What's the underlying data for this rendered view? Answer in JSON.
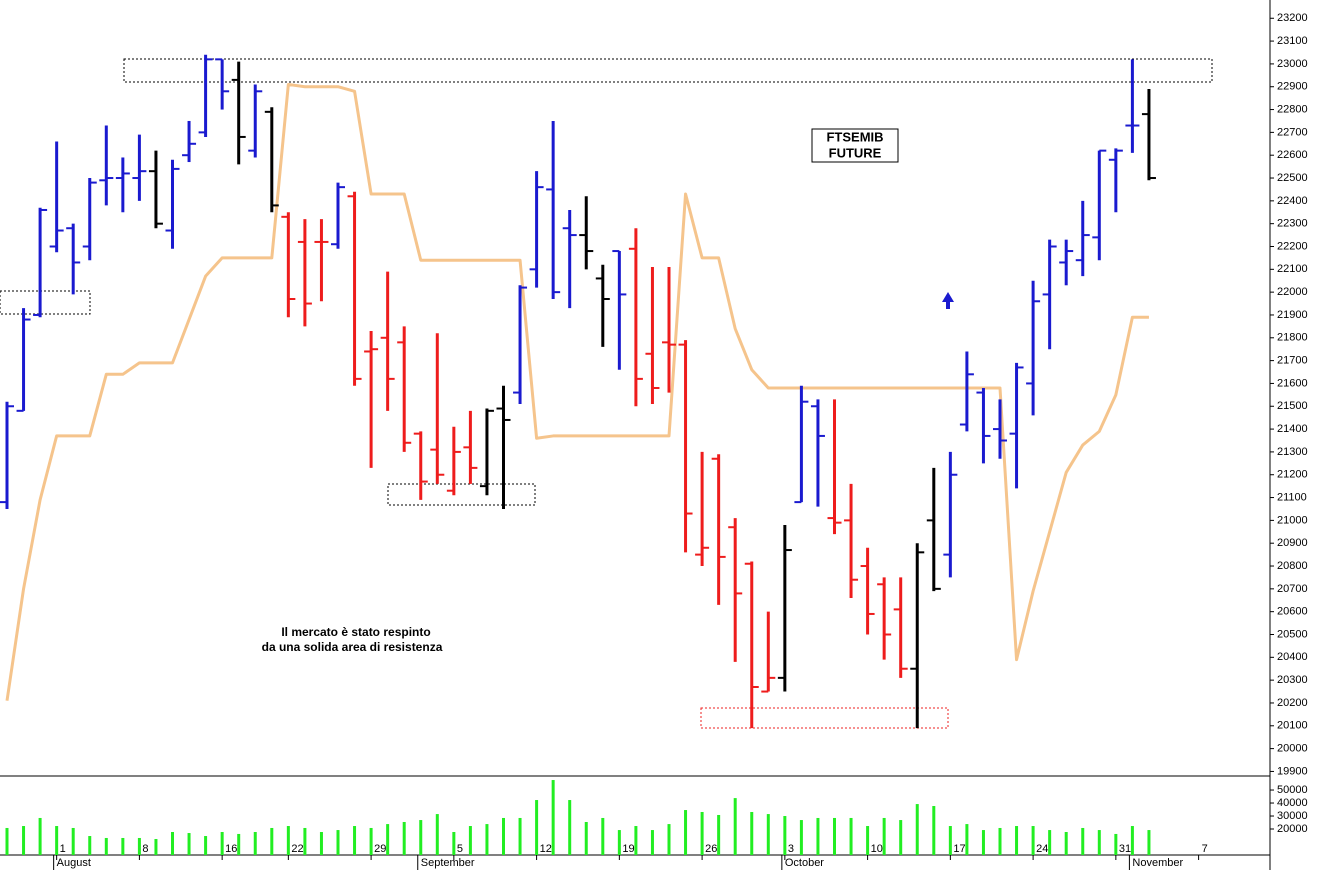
{
  "chart_data": {
    "type": "ohlc",
    "title_lines": [
      "FTSEMIB",
      "FUTURE"
    ],
    "annotation_lines": [
      "Il mercato è stato respinto",
      "da una solida area di resistenza"
    ],
    "categories": [
      null,
      null,
      null,
      "1",
      null,
      null,
      null,
      null,
      "8",
      null,
      null,
      null,
      null,
      "16",
      null,
      null,
      null,
      "22",
      null,
      null,
      null,
      null,
      "29",
      null,
      null,
      null,
      null,
      "5",
      null,
      null,
      null,
      null,
      "12",
      null,
      null,
      null,
      null,
      "19",
      null,
      null,
      null,
      null,
      "26",
      null,
      null,
      null,
      null,
      "3",
      null,
      null,
      null,
      null,
      "10",
      null,
      null,
      null,
      null,
      "17",
      null,
      null,
      null,
      null,
      "24",
      null,
      null,
      null,
      null,
      "31",
      null,
      null,
      null,
      null,
      "7"
    ],
    "month_labels": [
      null,
      null,
      null,
      "August",
      null,
      null,
      null,
      null,
      null,
      null,
      null,
      null,
      null,
      null,
      null,
      null,
      null,
      null,
      null,
      null,
      null,
      null,
      null,
      null,
      null,
      "September",
      null,
      null,
      null,
      null,
      null,
      null,
      null,
      null,
      null,
      null,
      null,
      null,
      null,
      null,
      null,
      null,
      null,
      null,
      null,
      null,
      null,
      "October",
      null,
      null,
      null,
      null,
      null,
      null,
      null,
      null,
      null,
      null,
      null,
      null,
      null,
      null,
      null,
      null,
      null,
      null,
      null,
      null,
      "November",
      null,
      null,
      null,
      null
    ],
    "ohlc": {
      "open": [
        21080,
        21480,
        21900,
        22200,
        22280,
        22200,
        22490,
        22500,
        22500,
        22530,
        22270,
        22600,
        22700,
        23020,
        22930,
        22620,
        22790,
        22330,
        22220,
        22220,
        22210,
        22420,
        21740,
        21800,
        21780,
        21380,
        21310,
        21130,
        21320,
        21150,
        21490,
        21560,
        22100,
        22450,
        22280,
        22250,
        22060,
        22180,
        22190,
        21730,
        21780,
        21770,
        20850,
        21270,
        20970,
        20810,
        20250,
        20310,
        21080,
        21500,
        21010,
        21000,
        20800,
        20720,
        20610,
        20350,
        21000,
        20850,
        21420,
        21560,
        21400,
        21380,
        21600,
        21990,
        22130,
        22140,
        22240,
        22580,
        22730,
        22780,
        null,
        null,
        null
      ],
      "high": [
        21520,
        21930,
        22370,
        22660,
        22300,
        22500,
        22730,
        22590,
        22690,
        22620,
        22580,
        22750,
        23040,
        23020,
        23010,
        22910,
        22810,
        22350,
        22320,
        22320,
        22480,
        22440,
        21830,
        22090,
        21850,
        21390,
        21820,
        21410,
        21480,
        21490,
        21590,
        22030,
        22530,
        22750,
        22360,
        22420,
        22120,
        22180,
        22280,
        22110,
        22110,
        21790,
        21300,
        21290,
        21010,
        20820,
        20600,
        20980,
        21590,
        21530,
        21530,
        21160,
        20880,
        20750,
        20750,
        20900,
        21230,
        21300,
        21740,
        21580,
        21530,
        21690,
        22050,
        22230,
        22230,
        22400,
        22620,
        22630,
        23020,
        22890,
        null,
        null,
        null
      ],
      "low": [
        21050,
        21480,
        21890,
        22175,
        21990,
        22140,
        22380,
        22350,
        22400,
        22280,
        22190,
        22570,
        22680,
        22800,
        22560,
        22590,
        22350,
        21890,
        21850,
        21960,
        22190,
        21590,
        21230,
        21480,
        21300,
        21090,
        21160,
        21110,
        21160,
        21110,
        21050,
        21510,
        22020,
        21970,
        21930,
        22100,
        21760,
        21660,
        21500,
        21510,
        21560,
        20860,
        20800,
        20630,
        20380,
        20090,
        20250,
        20250,
        21080,
        21060,
        20940,
        20660,
        20500,
        20390,
        20310,
        20090,
        20690,
        20750,
        21390,
        21250,
        21270,
        21140,
        21460,
        21750,
        22030,
        22070,
        22140,
        22350,
        22610,
        22490,
        null,
        null,
        null
      ],
      "close": [
        21500,
        21880,
        22360,
        22270,
        22130,
        22480,
        22500,
        22520,
        22530,
        22300,
        22540,
        22650,
        23020,
        22880,
        22680,
        22880,
        22380,
        21970,
        21950,
        22220,
        22460,
        21620,
        21750,
        21620,
        21340,
        21170,
        21200,
        21300,
        21230,
        21480,
        21440,
        22020,
        22460,
        22000,
        22250,
        22180,
        21970,
        21990,
        21620,
        21580,
        21770,
        21030,
        20880,
        20840,
        20680,
        20270,
        20310,
        20870,
        21520,
        21370,
        20990,
        20740,
        20590,
        20500,
        20350,
        20860,
        20700,
        21200,
        21640,
        21370,
        21350,
        21670,
        21960,
        22200,
        22180,
        22250,
        22620,
        22620,
        22730,
        22500,
        null,
        null,
        null
      ],
      "colors": [
        "#1a1acf",
        "#1a1acf",
        "#1a1acf",
        "#1a1acf",
        "#1a1acf",
        "#1a1acf",
        "#1a1acf",
        "#1a1acf",
        "#1a1acf",
        "#000000",
        "#1a1acf",
        "#1a1acf",
        "#1a1acf",
        "#1a1acf",
        "#000000",
        "#1a1acf",
        "#000000",
        "#ee1c1c",
        "#ee1c1c",
        "#ee1c1c",
        "#1a1acf",
        "#ee1c1c",
        "#ee1c1c",
        "#ee1c1c",
        "#ee1c1c",
        "#ee1c1c",
        "#ee1c1c",
        "#ee1c1c",
        "#ee1c1c",
        "#000000",
        "#000000",
        "#1a1acf",
        "#1a1acf",
        "#1a1acf",
        "#1a1acf",
        "#000000",
        "#000000",
        "#1a1acf",
        "#ee1c1c",
        "#ee1c1c",
        "#ee1c1c",
        "#ee1c1c",
        "#ee1c1c",
        "#ee1c1c",
        "#ee1c1c",
        "#ee1c1c",
        "#ee1c1c",
        "#000000",
        "#1a1acf",
        "#1a1acf",
        "#ee1c1c",
        "#ee1c1c",
        "#ee1c1c",
        "#ee1c1c",
        "#ee1c1c",
        "#000000",
        "#000000",
        "#1a1acf",
        "#1a1acf",
        "#1a1acf",
        "#1a1acf",
        "#1a1acf",
        "#1a1acf",
        "#1a1acf",
        "#1a1acf",
        "#1a1acf",
        "#1a1acf",
        "#1a1acf",
        "#1a1acf",
        "#000000",
        null,
        null,
        null
      ]
    },
    "line": {
      "color": "#f5c48c",
      "values": [
        20210,
        20700,
        21090,
        21370,
        21370,
        21370,
        21640,
        21640,
        21690,
        21690,
        21690,
        21880,
        22070,
        22150,
        22150,
        22150,
        22150,
        22910,
        22900,
        22900,
        22900,
        22880,
        22430,
        22430,
        22430,
        22140,
        22140,
        22140,
        22140,
        22140,
        22140,
        22140,
        21360,
        21370,
        21370,
        21370,
        21370,
        21370,
        21370,
        21370,
        21370,
        22430,
        22150,
        22150,
        21840,
        21660,
        21580,
        21580,
        21580,
        21580,
        21580,
        21580,
        21580,
        21580,
        21580,
        21580,
        21580,
        21580,
        21580,
        21580,
        21580,
        20390,
        20690,
        20950,
        21210,
        21330,
        21390,
        21550,
        21890,
        21890,
        null,
        null,
        null
      ]
    },
    "volume": {
      "color": "#22ee22",
      "values": [
        20800,
        22300,
        28500,
        22300,
        20800,
        14600,
        13100,
        13100,
        13100,
        12300,
        17700,
        16900,
        14600,
        17700,
        16200,
        17700,
        20800,
        22300,
        20800,
        17700,
        19200,
        22300,
        20800,
        23800,
        25400,
        26900,
        31500,
        17700,
        22300,
        23800,
        28500,
        28500,
        42300,
        57700,
        42300,
        25400,
        28500,
        19200,
        22300,
        19200,
        23800,
        34600,
        33100,
        30800,
        43800,
        33100,
        31500,
        30000,
        26900,
        28500,
        28500,
        28500,
        22300,
        28500,
        26900,
        39200,
        37700,
        22300,
        23800,
        19200,
        20800,
        22300,
        22300,
        19200,
        17700,
        20800,
        19200,
        16200,
        22300,
        19200,
        null,
        null,
        null
      ],
      "ylim": [
        0,
        60800
      ],
      "yticks": [
        20000,
        30000,
        40000,
        50000
      ]
    },
    "ylim": [
      19880,
      23280
    ],
    "yticks": [
      19900,
      20000,
      20100,
      20200,
      20300,
      20400,
      20500,
      20600,
      20700,
      20800,
      20900,
      21000,
      21100,
      21200,
      21300,
      21400,
      21500,
      21600,
      21700,
      21800,
      21900,
      22000,
      22100,
      22200,
      22300,
      22400,
      22500,
      22600,
      22700,
      22800,
      22900,
      23000,
      23100,
      23200
    ]
  }
}
